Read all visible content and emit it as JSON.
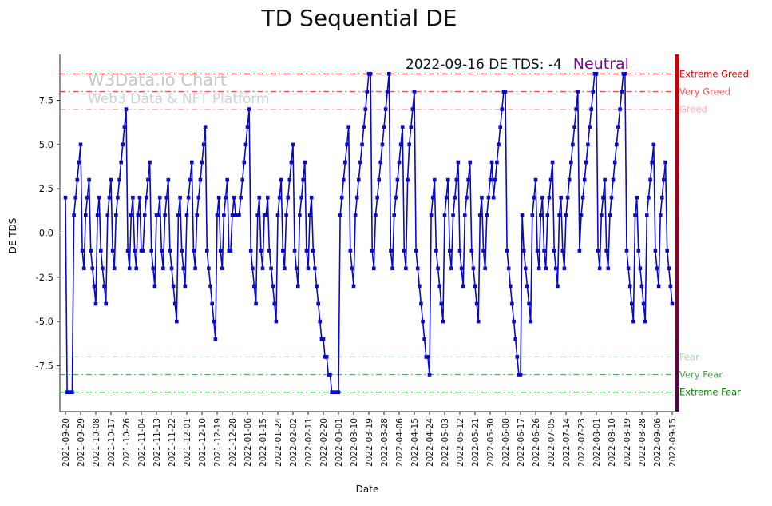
{
  "title": "TD Sequential DE",
  "annotation": {
    "text": "2022-09-16 DE TDS: -4",
    "status": "Neutral",
    "status_color": "#6a0f8e"
  },
  "watermark": {
    "line1": "W3Data.io Chart",
    "line2": "Web3 Data & NFT Platform"
  },
  "axes": {
    "xlabel": "Date",
    "ylabel": "DE TDS",
    "y_ticks": [
      {
        "label": "7.5",
        "value": 7.5
      },
      {
        "label": "5.0",
        "value": 5.0
      },
      {
        "label": "2.5",
        "value": 2.5
      },
      {
        "label": "0.0",
        "value": 0.0
      },
      {
        "label": "-2.5",
        "value": -2.5
      },
      {
        "label": "-5.0",
        "value": -5.0
      },
      {
        "label": "-7.5",
        "value": -7.5
      }
    ]
  },
  "thresholds": [
    {
      "label": "Extreme Greed",
      "value": 9,
      "line_color": "#e60000",
      "label_color": "#e60000"
    },
    {
      "label": "Very Greed",
      "value": 8,
      "line_color": "#ff4d4d",
      "label_color": "#ff5050"
    },
    {
      "label": "Greed",
      "value": 7,
      "line_color": "#ffb3b3",
      "label_color": "#ffaaaa"
    },
    {
      "label": "Fear",
      "value": -7,
      "line_color": "#b3e0b3",
      "label_color": "#a6d9a6"
    },
    {
      "label": "Very Fear",
      "value": -8,
      "line_color": "#55b055",
      "label_color": "#44a044"
    },
    {
      "label": "Extreme Fear",
      "value": -9,
      "line_color": "#008000",
      "label_color": "#008000"
    }
  ],
  "colorbar": {
    "stops": [
      "#d40000",
      "#a30016",
      "#73072f",
      "#4a0a46"
    ]
  },
  "chart_data": {
    "type": "line",
    "title": "TD Sequential DE",
    "xlabel": "Date",
    "ylabel": "DE TDS",
    "series_name": "DE TDS",
    "series_color": "#0909c9",
    "marker": "square",
    "ylim": [
      -10.1,
      10.1
    ],
    "start_date": "2021-09-20",
    "end_date": "2022-09-15",
    "x_tick_labels": [
      "2021-09-20",
      "2021-09-29",
      "2021-10-08",
      "2021-10-17",
      "2021-10-26",
      "2021-11-04",
      "2021-11-13",
      "2021-11-22",
      "2021-12-01",
      "2021-12-10",
      "2021-12-19",
      "2021-12-28",
      "2022-01-06",
      "2022-01-15",
      "2022-01-24",
      "2022-02-02",
      "2022-02-11",
      "2022-02-20",
      "2022-03-01",
      "2022-03-10",
      "2022-03-19",
      "2022-03-28",
      "2022-04-06",
      "2022-04-15",
      "2022-04-24",
      "2022-05-03",
      "2022-05-12",
      "2022-05-21",
      "2022-05-30",
      "2022-06-08",
      "2022-06-17",
      "2022-06-26",
      "2022-07-05",
      "2022-07-14",
      "2022-07-23",
      "2022-08-01",
      "2022-08-10",
      "2022-08-19",
      "2022-08-28",
      "2022-09-06",
      "2022-09-15"
    ],
    "values": [
      2,
      -9,
      -9,
      -9,
      -9,
      1,
      2,
      3,
      4,
      5,
      -1,
      -2,
      1,
      2,
      3,
      -1,
      -2,
      -3,
      -4,
      1,
      2,
      -1,
      -2,
      -3,
      -4,
      1,
      2,
      3,
      -1,
      -2,
      1,
      2,
      3,
      4,
      5,
      6,
      7,
      -1,
      -2,
      1,
      2,
      -1,
      -2,
      1,
      2,
      -1,
      -1,
      1,
      2,
      3,
      4,
      -1,
      -2,
      -3,
      1,
      1,
      2,
      -1,
      -2,
      1,
      2,
      3,
      -1,
      -2,
      -3,
      -4,
      -5,
      1,
      2,
      -1,
      -2,
      -3,
      1,
      2,
      3,
      4,
      -1,
      -2,
      1,
      2,
      3,
      4,
      5,
      6,
      -1,
      -2,
      -3,
      -4,
      -5,
      -6,
      1,
      2,
      -1,
      -2,
      1,
      2,
      3,
      -1,
      -1,
      1,
      2,
      1,
      1,
      1,
      2,
      3,
      4,
      5,
      6,
      7,
      -1,
      -2,
      -3,
      -4,
      1,
      2,
      -1,
      -2,
      1,
      1,
      2,
      -1,
      -2,
      -3,
      -4,
      -5,
      1,
      2,
      3,
      -1,
      -2,
      1,
      2,
      3,
      4,
      5,
      -1,
      -2,
      -3,
      1,
      2,
      3,
      4,
      -1,
      -2,
      1,
      2,
      -1,
      -2,
      -3,
      -4,
      -5,
      -6,
      -6,
      -7,
      -7,
      -8,
      -8,
      -9,
      -9,
      -9,
      -9,
      -9,
      1,
      2,
      3,
      4,
      5,
      6,
      -1,
      -2,
      -3,
      1,
      2,
      3,
      4,
      5,
      6,
      7,
      8,
      9,
      9,
      -1,
      -2,
      1,
      2,
      3,
      4,
      5,
      6,
      7,
      8,
      9,
      -1,
      -2,
      1,
      2,
      3,
      4,
      5,
      6,
      -1,
      -2,
      3,
      5,
      6,
      7,
      8,
      -1,
      -2,
      -3,
      -4,
      -5,
      -6,
      -7,
      -7,
      -8,
      1,
      2,
      3,
      -1,
      -2,
      -3,
      -4,
      -5,
      1,
      2,
      3,
      -1,
      -2,
      1,
      2,
      3,
      4,
      -1,
      -2,
      -3,
      1,
      2,
      3,
      4,
      -1,
      -2,
      -3,
      -4,
      -5,
      1,
      2,
      -1,
      -2,
      1,
      2,
      3,
      4,
      2,
      3,
      4,
      5,
      6,
      7,
      8,
      8,
      -1,
      -2,
      -3,
      -4,
      -5,
      -6,
      -7,
      -8,
      -8,
      1,
      -1,
      -2,
      -3,
      -4,
      -5,
      1,
      2,
      3,
      -1,
      -2,
      1,
      2,
      -1,
      -2,
      1,
      2,
      3,
      4,
      -1,
      -2,
      -3,
      1,
      2,
      -1,
      -2,
      1,
      2,
      3,
      4,
      5,
      6,
      7,
      8,
      -1,
      1,
      2,
      3,
      4,
      5,
      6,
      7,
      8,
      9,
      9,
      -1,
      -2,
      1,
      2,
      3,
      -1,
      -2,
      1,
      2,
      3,
      4,
      5,
      6,
      7,
      8,
      9,
      9,
      -1,
      -2,
      -3,
      -4,
      -5,
      1,
      2,
      -1,
      -2,
      -3,
      -4,
      -5,
      1,
      2,
      3,
      4,
      5,
      -1,
      -2,
      -3,
      1,
      2,
      3,
      4,
      -1,
      -2,
      -3,
      -4
    ]
  }
}
